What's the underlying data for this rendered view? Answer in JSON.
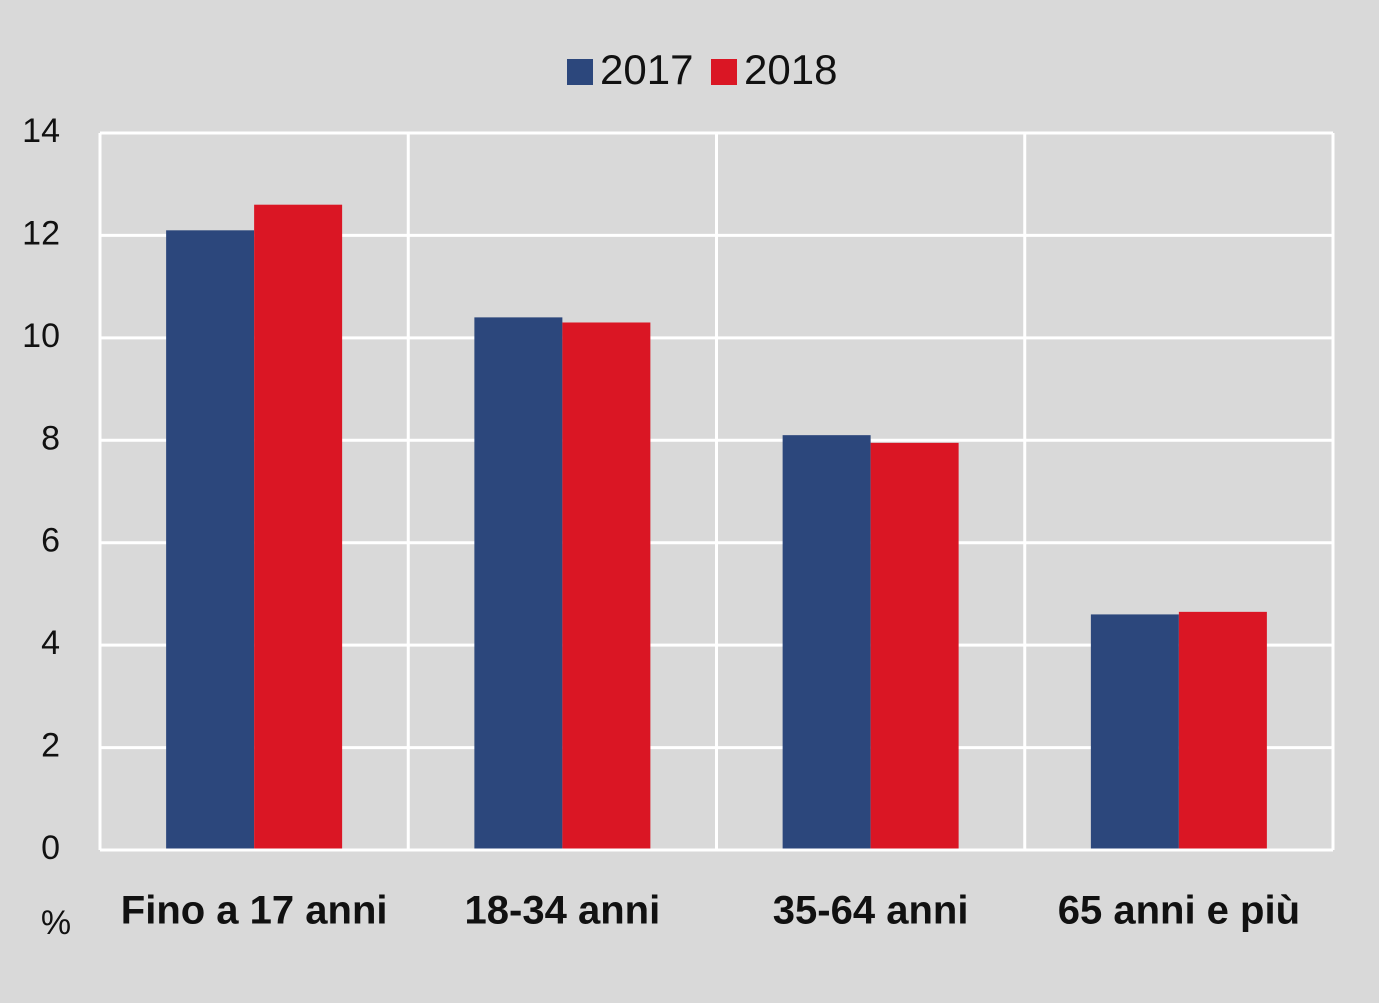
{
  "chart_data": {
    "type": "bar",
    "categories": [
      "Fino a 17 anni",
      "18-34 anni",
      "35-64 anni",
      "65 anni e più"
    ],
    "series": [
      {
        "name": "2017",
        "color": "#2c477c",
        "values": [
          12.1,
          10.4,
          8.1,
          4.6
        ]
      },
      {
        "name": "2018",
        "color": "#da1624",
        "values": [
          12.6,
          10.3,
          7.95,
          4.65
        ]
      }
    ],
    "ylim": [
      0,
      14
    ],
    "yticks": [
      0,
      2,
      4,
      6,
      8,
      10,
      12,
      14
    ],
    "ylabel": "%",
    "grid": true,
    "legend_position": "top-center"
  }
}
